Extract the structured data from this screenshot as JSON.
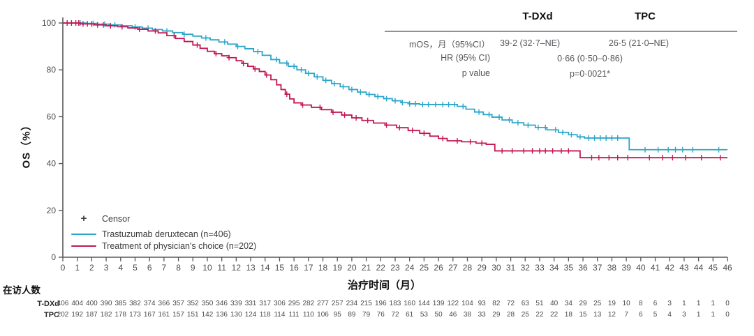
{
  "colors": {
    "tdxd_blue": "#2CA6CA",
    "tpc_red": "#C31753",
    "axis": "#58585a",
    "tick_text": "#4a4a4c",
    "censor_legend": "#3c3c3e",
    "table_rule": "#8f9193"
  },
  "y_axis": {
    "label": "OS（%）",
    "ticks": [
      0,
      20,
      40,
      60,
      80,
      100
    ]
  },
  "x_axis": {
    "title": "治疗时间（月）",
    "ticks": [
      0,
      1,
      2,
      3,
      4,
      5,
      6,
      7,
      8,
      9,
      10,
      11,
      12,
      13,
      14,
      15,
      16,
      17,
      18,
      19,
      20,
      21,
      22,
      23,
      24,
      25,
      26,
      27,
      28,
      29,
      30,
      31,
      32,
      33,
      34,
      35,
      36,
      37,
      38,
      39,
      40,
      41,
      42,
      43,
      44,
      45,
      46
    ]
  },
  "legend": {
    "censor_marker": "+",
    "censor_label": "Censor",
    "series1_label": "Trastuzumab deruxtecan (n=406)",
    "series2_label": "Treatment of physician's choice (n=202)"
  },
  "stats_table": {
    "col1_header": "T-DXd",
    "col2_header": "TPC",
    "row1_label": "mOS，月（95%CI）",
    "row1_tdxd": "39·2 (32·7–NE)",
    "row1_tpc": "26·5 (21·0–NE)",
    "row2_label": "HR (95% CI)",
    "row2_value": "0·66 (0·50–0·86)",
    "row3_label": "p value",
    "row3_value": "p=0·0021*"
  },
  "at_risk": {
    "title": "在访人数",
    "rows": [
      {
        "label": "T-DXd",
        "values": [
          406,
          404,
          400,
          390,
          385,
          382,
          374,
          366,
          357,
          352,
          350,
          346,
          339,
          331,
          317,
          306,
          295,
          282,
          277,
          257,
          234,
          215,
          196,
          183,
          160,
          144,
          139,
          122,
          104,
          93,
          82,
          72,
          63,
          51,
          40,
          34,
          29,
          25,
          19,
          10,
          8,
          6,
          3,
          1,
          1,
          1,
          0
        ]
      },
      {
        "label": "TPC",
        "values": [
          202,
          192,
          187,
          182,
          178,
          173,
          167,
          161,
          157,
          151,
          142,
          136,
          130,
          124,
          118,
          114,
          111,
          110,
          106,
          95,
          89,
          79,
          76,
          72,
          61,
          53,
          50,
          46,
          38,
          33,
          29,
          28,
          25,
          22,
          22,
          18,
          15,
          13,
          12,
          7,
          6,
          5,
          4,
          3,
          1,
          1,
          0
        ]
      }
    ]
  },
  "chart_data": {
    "type": "line",
    "subtype": "kaplan-meier-step",
    "title": "",
    "xlabel": "治疗时间（月）",
    "ylabel": "OS（%）",
    "xlim": [
      0,
      46
    ],
    "ylim": [
      0,
      100
    ],
    "grid": false,
    "legend_position": "lower-left",
    "series": [
      {
        "name": "Trastuzumab deruxtecan (n=406)",
        "color": "#2CA6CA",
        "median_os_months": 39.2,
        "points": [
          [
            0,
            100
          ],
          [
            1.6,
            99.8
          ],
          [
            2.4,
            99.5
          ],
          [
            3.2,
            99.2
          ],
          [
            4.0,
            98.8
          ],
          [
            4.8,
            98.3
          ],
          [
            5.5,
            97.8
          ],
          [
            6.2,
            97.2
          ],
          [
            6.9,
            96.6
          ],
          [
            7.6,
            95.9
          ],
          [
            8.3,
            95.2
          ],
          [
            9.0,
            94.4
          ],
          [
            9.6,
            93.6
          ],
          [
            10.2,
            92.8
          ],
          [
            10.8,
            91.9
          ],
          [
            11.4,
            91.0
          ],
          [
            12.0,
            90.0
          ],
          [
            12.6,
            89.0
          ],
          [
            13.2,
            87.8
          ],
          [
            13.8,
            86.2
          ],
          [
            14.4,
            84.4
          ],
          [
            15.0,
            82.9
          ],
          [
            15.6,
            81.5
          ],
          [
            16.2,
            80.0
          ],
          [
            16.8,
            78.5
          ],
          [
            17.4,
            77.0
          ],
          [
            18.0,
            75.5
          ],
          [
            18.6,
            74.1
          ],
          [
            19.2,
            72.8
          ],
          [
            19.8,
            71.6
          ],
          [
            20.4,
            70.5
          ],
          [
            21.0,
            69.5
          ],
          [
            21.6,
            68.6
          ],
          [
            22.2,
            67.7
          ],
          [
            22.8,
            66.8
          ],
          [
            23.4,
            66.0
          ],
          [
            24.0,
            65.5
          ],
          [
            24.7,
            65.2
          ],
          [
            27.3,
            64.4
          ],
          [
            27.9,
            63.2
          ],
          [
            28.5,
            62.0
          ],
          [
            29.1,
            60.9
          ],
          [
            29.7,
            59.8
          ],
          [
            30.4,
            58.6
          ],
          [
            31.1,
            57.4
          ],
          [
            31.9,
            56.4
          ],
          [
            32.7,
            55.4
          ],
          [
            33.5,
            54.4
          ],
          [
            34.3,
            53.3
          ],
          [
            35.0,
            52.3
          ],
          [
            35.6,
            51.4
          ],
          [
            36.1,
            50.9
          ],
          [
            39.2,
            45.9
          ],
          [
            46,
            45.9
          ]
        ],
        "censor_times": [
          1.2,
          2.1,
          2.9,
          3.6,
          5.0,
          5.9,
          7.2,
          8.4,
          9.9,
          11.2,
          12.1,
          13.5,
          14.8,
          15.5,
          16.0,
          16.5,
          17.0,
          17.6,
          18.2,
          18.8,
          19.4,
          20.0,
          20.6,
          21.2,
          21.8,
          22.4,
          23.0,
          23.5,
          24.0,
          24.4,
          24.9,
          25.3,
          25.8,
          26.3,
          26.7,
          27.1,
          27.7,
          28.8,
          29.5,
          30.2,
          30.9,
          31.5,
          32.2,
          32.9,
          33.4,
          34.1,
          34.6,
          35.2,
          35.8,
          36.4,
          36.8,
          37.2,
          37.6,
          38.0,
          38.4,
          40.3,
          41.2,
          41.9,
          42.4,
          42.9,
          43.6,
          45.4
        ]
      },
      {
        "name": "Treatment of physician's choice (n=202)",
        "color": "#C31753",
        "median_os_months": 26.5,
        "points": [
          [
            0,
            100
          ],
          [
            1.2,
            99.6
          ],
          [
            2.2,
            99.2
          ],
          [
            3.0,
            98.8
          ],
          [
            3.8,
            98.4
          ],
          [
            4.5,
            97.9
          ],
          [
            5.2,
            97.3
          ],
          [
            5.9,
            96.6
          ],
          [
            6.6,
            95.8
          ],
          [
            7.2,
            94.6
          ],
          [
            7.8,
            93.4
          ],
          [
            8.4,
            92.1
          ],
          [
            9.0,
            90.6
          ],
          [
            9.5,
            89.2
          ],
          [
            10.0,
            87.9
          ],
          [
            10.5,
            86.9
          ],
          [
            11.0,
            86.0
          ],
          [
            11.5,
            85.2
          ],
          [
            12.0,
            83.9
          ],
          [
            12.4,
            82.7
          ],
          [
            12.8,
            81.5
          ],
          [
            13.2,
            80.4
          ],
          [
            13.6,
            79.3
          ],
          [
            14.0,
            77.8
          ],
          [
            14.4,
            75.8
          ],
          [
            14.8,
            73.6
          ],
          [
            15.1,
            71.6
          ],
          [
            15.4,
            69.6
          ],
          [
            15.7,
            67.6
          ],
          [
            16.0,
            65.9
          ],
          [
            16.5,
            65.0
          ],
          [
            17.2,
            64.0
          ],
          [
            17.9,
            63.0
          ],
          [
            18.6,
            61.9
          ],
          [
            19.3,
            60.7
          ],
          [
            20.0,
            59.5
          ],
          [
            20.7,
            58.4
          ],
          [
            21.5,
            57.3
          ],
          [
            22.3,
            56.4
          ],
          [
            23.1,
            55.3
          ],
          [
            23.9,
            54.1
          ],
          [
            24.7,
            52.9
          ],
          [
            25.4,
            51.7
          ],
          [
            26.0,
            50.7
          ],
          [
            26.6,
            49.7
          ],
          [
            27.6,
            49.3
          ],
          [
            28.6,
            48.7
          ],
          [
            29.3,
            48.2
          ],
          [
            29.9,
            45.4
          ],
          [
            35.8,
            42.5
          ],
          [
            46,
            42.5
          ]
        ],
        "censor_times": [
          0.3,
          0.6,
          0.9,
          1.1,
          1.4,
          1.7,
          2.0,
          2.4,
          2.8,
          3.3,
          4.1,
          5.3,
          6.4,
          7.7,
          9.3,
          10.6,
          11.5,
          12.5,
          13.3,
          14.1,
          15.5,
          16.6,
          17.8,
          18.7,
          19.5,
          20.3,
          21.1,
          22.4,
          23.3,
          24.2,
          25.0,
          26.3,
          27.3,
          28.2,
          29.0,
          30.4,
          31.1,
          31.9,
          32.5,
          33.0,
          33.4,
          33.9,
          34.5,
          35.0,
          36.6,
          37.1,
          37.8,
          38.4,
          39.1,
          40.6,
          41.5,
          42.2,
          43.1,
          44.2,
          45.5
        ]
      }
    ]
  }
}
